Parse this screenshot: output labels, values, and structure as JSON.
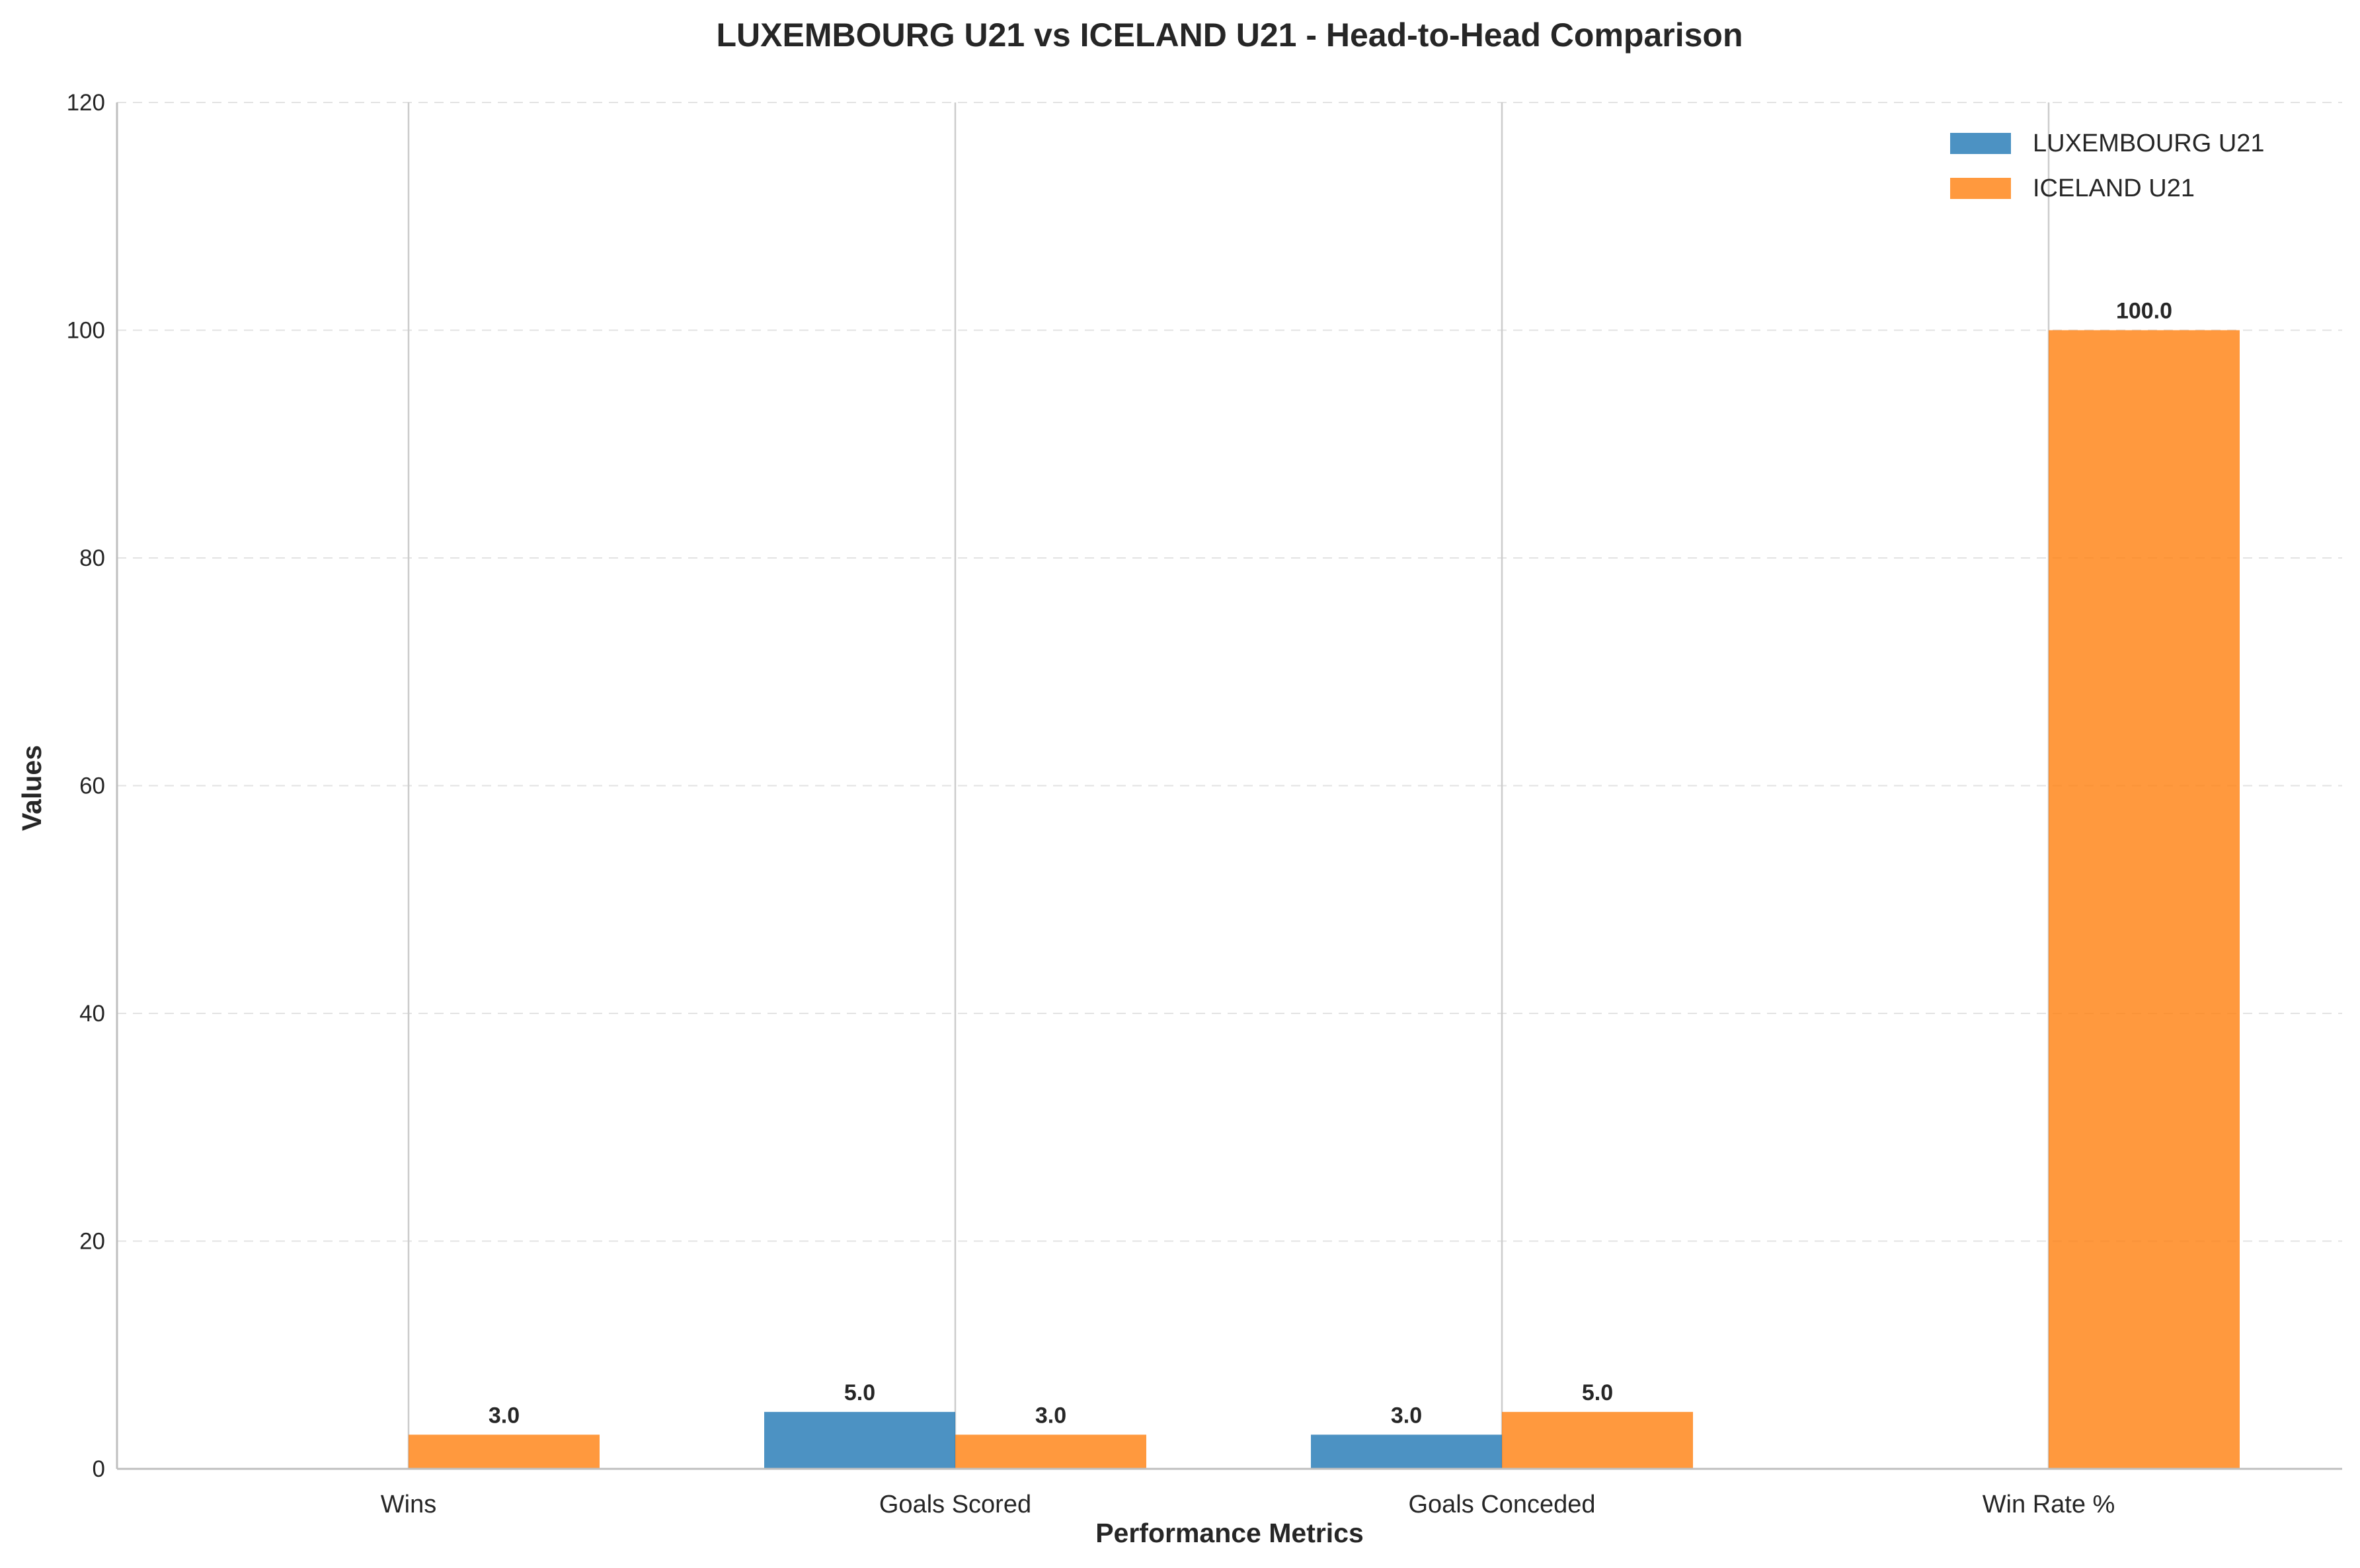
{
  "chart_data": {
    "type": "bar",
    "title": "LUXEMBOURG U21 vs ICELAND U21 - Head-to-Head Comparison",
    "xlabel": "Performance Metrics",
    "ylabel": "Values",
    "categories": [
      "Wins",
      "Goals Scored",
      "Goals Conceded",
      "Win Rate %"
    ],
    "series": [
      {
        "name": "LUXEMBOURG U21",
        "color": "#1f77b4",
        "values": [
          0,
          5,
          3,
          0
        ],
        "labels": [
          "",
          "5.0",
          "3.0",
          ""
        ]
      },
      {
        "name": "ICELAND U21",
        "color": "#ff7f0e",
        "values": [
          3,
          3,
          5,
          100
        ],
        "labels": [
          "3.0",
          "3.0",
          "5.0",
          "100.0"
        ]
      }
    ],
    "ylim": [
      0,
      120
    ],
    "yticks": [
      "0",
      "20",
      "40",
      "60",
      "80",
      "100",
      "120"
    ],
    "grid": "y-dashed",
    "legend": "top-right"
  }
}
